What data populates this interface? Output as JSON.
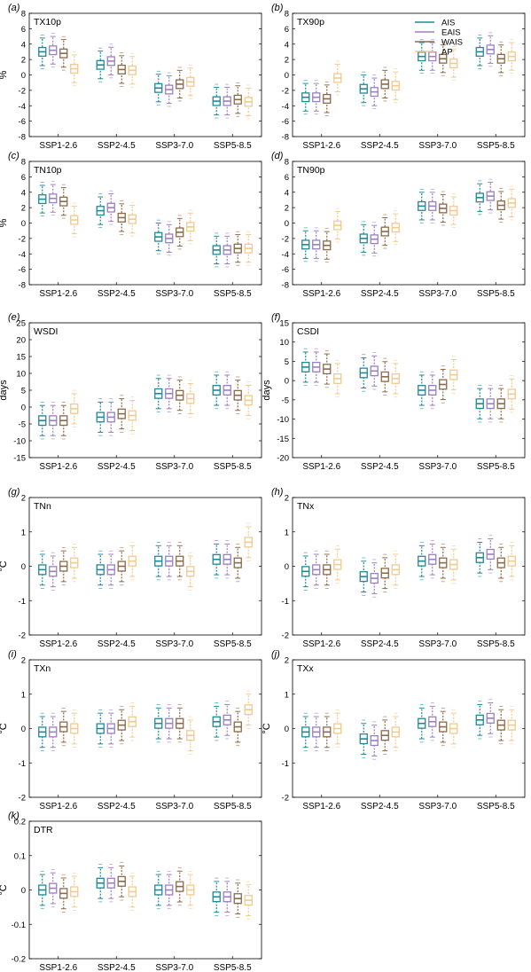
{
  "figure": {
    "categories": [
      "SSP1-2.6",
      "SSP2-4.5",
      "SSP3-7.0",
      "SSP5-8.5"
    ],
    "regions": [
      "AIS",
      "EAIS",
      "WAIS",
      "AP"
    ],
    "colors": {
      "AIS": "#1f8a96",
      "EAIS": "#9b7fc4",
      "WAIS": "#8c6a48",
      "AP": "#f2c98e"
    },
    "legend_position": "top-right of panel (b)"
  },
  "chart_data": [
    {
      "panel_label": "(a)",
      "title": "TX10p",
      "type": "box",
      "ylabel": "%",
      "ylim": [
        -8,
        8
      ],
      "yticks": [
        -8,
        -6,
        -4,
        -2,
        0,
        2,
        4,
        6,
        8
      ],
      "medians": {
        "AIS": [
          3.0,
          1.3,
          -1.7,
          -3.4
        ],
        "EAIS": [
          3.2,
          1.8,
          -1.9,
          -3.4
        ],
        "WAIS": [
          2.8,
          0.7,
          -1.2,
          -3.2
        ],
        "AP": [
          0.8,
          0.6,
          -0.9,
          -3.5
        ]
      }
    },
    {
      "panel_label": "(b)",
      "title": "TX90p",
      "type": "box",
      "ylabel": "",
      "ylim": [
        -8,
        8
      ],
      "yticks": [
        -8,
        -6,
        -4,
        -2,
        0,
        2,
        4,
        6,
        8
      ],
      "medians": {
        "AIS": [
          -2.9,
          -1.8,
          2.4,
          3.0
        ],
        "EAIS": [
          -2.9,
          -2.2,
          2.4,
          3.3
        ],
        "WAIS": [
          -3.1,
          -1.2,
          2.1,
          2.1
        ],
        "AP": [
          -0.4,
          -1.4,
          1.5,
          2.4
        ]
      }
    },
    {
      "panel_label": "(c)",
      "title": "TN10p",
      "type": "box",
      "ylabel": "%",
      "ylim": [
        -8,
        8
      ],
      "yticks": [
        -8,
        -6,
        -4,
        -2,
        0,
        2,
        4,
        6,
        8
      ],
      "medians": {
        "AIS": [
          3.1,
          1.6,
          -1.8,
          -3.5
        ],
        "EAIS": [
          3.2,
          2.0,
          -2.0,
          -3.5
        ],
        "WAIS": [
          2.8,
          0.7,
          -1.2,
          -3.3
        ],
        "AP": [
          0.4,
          0.5,
          -0.5,
          -3.3
        ]
      }
    },
    {
      "panel_label": "(d)",
      "title": "TN90p",
      "type": "box",
      "ylabel": "",
      "ylim": [
        -8,
        8
      ],
      "yticks": [
        -8,
        -6,
        -4,
        -2,
        0,
        2,
        4,
        6,
        8
      ],
      "medians": {
        "AIS": [
          -2.8,
          -2.0,
          2.2,
          3.3
        ],
        "EAIS": [
          -2.8,
          -2.1,
          2.2,
          3.5
        ],
        "WAIS": [
          -2.9,
          -1.1,
          1.9,
          2.3
        ],
        "AP": [
          -0.3,
          -0.6,
          1.6,
          2.6
        ]
      }
    },
    {
      "panel_label": "(e)",
      "title": "WSDI",
      "type": "box",
      "ylabel": "days",
      "ylim": [
        -15,
        25
      ],
      "yticks": [
        -15,
        -10,
        -5,
        0,
        5,
        10,
        15,
        20,
        25
      ],
      "medians": {
        "AIS": [
          -4.0,
          -3.0,
          4.0,
          5.0
        ],
        "EAIS": [
          -4.0,
          -3.0,
          4.0,
          5.0
        ],
        "WAIS": [
          -4.0,
          -2.0,
          3.5,
          3.5
        ],
        "AP": [
          -0.5,
          -2.5,
          2.5,
          2.0
        ]
      }
    },
    {
      "panel_label": "(f)",
      "title": "CSDI",
      "type": "box",
      "ylabel": "days",
      "ylim": [
        -20,
        15
      ],
      "yticks": [
        -20,
        -15,
        -10,
        -5,
        0,
        5,
        10,
        15
      ],
      "medians": {
        "AIS": [
          3.5,
          2.0,
          -2.5,
          -6.0
        ],
        "EAIS": [
          3.5,
          2.5,
          -2.5,
          -6.0
        ],
        "WAIS": [
          3.0,
          1.0,
          -1.0,
          -6.0
        ],
        "AP": [
          0.5,
          0.5,
          1.5,
          -3.5
        ]
      }
    },
    {
      "panel_label": "(g)",
      "title": "TNn",
      "type": "box",
      "ylabel": "°C",
      "ylim": [
        -2,
        2
      ],
      "yticks": [
        -2,
        -1,
        0,
        1,
        2
      ],
      "medians": {
        "AIS": [
          -0.1,
          -0.1,
          0.15,
          0.2
        ],
        "EAIS": [
          -0.15,
          -0.1,
          0.15,
          0.2
        ],
        "WAIS": [
          0.0,
          0.0,
          0.15,
          0.1
        ],
        "AP": [
          0.1,
          0.15,
          -0.15,
          0.7
        ]
      }
    },
    {
      "panel_label": "(h)",
      "title": "TNx",
      "type": "box",
      "ylabel": "",
      "ylim": [
        -2,
        2
      ],
      "yticks": [
        -2,
        -1,
        0,
        1,
        2
      ],
      "medians": {
        "AIS": [
          -0.15,
          -0.3,
          0.15,
          0.25
        ],
        "EAIS": [
          -0.1,
          -0.35,
          0.2,
          0.35
        ],
        "WAIS": [
          -0.1,
          -0.2,
          0.1,
          0.1
        ],
        "AP": [
          0.05,
          -0.1,
          0.05,
          0.15
        ]
      }
    },
    {
      "panel_label": "(i)",
      "title": "TXn",
      "type": "box",
      "ylabel": "°C",
      "ylim": [
        -2,
        2
      ],
      "yticks": [
        -2,
        -1,
        0,
        1,
        2
      ],
      "medians": {
        "AIS": [
          -0.1,
          0.0,
          0.15,
          0.2
        ],
        "EAIS": [
          -0.1,
          0.0,
          0.15,
          0.25
        ],
        "WAIS": [
          0.05,
          0.1,
          0.15,
          0.05
        ],
        "AP": [
          0.0,
          0.2,
          -0.2,
          0.55
        ]
      }
    },
    {
      "panel_label": "(j)",
      "title": "TXx",
      "type": "box",
      "ylabel": "°C",
      "ylim": [
        -2,
        2
      ],
      "yticks": [
        -2,
        -1,
        0,
        1,
        2
      ],
      "medians": {
        "AIS": [
          -0.1,
          -0.3,
          0.15,
          0.25
        ],
        "EAIS": [
          -0.1,
          -0.35,
          0.2,
          0.3
        ],
        "WAIS": [
          -0.1,
          -0.2,
          0.05,
          0.1
        ],
        "AP": [
          0.0,
          -0.1,
          0.0,
          0.1
        ]
      }
    },
    {
      "panel_label": "(k)",
      "title": "DTR",
      "type": "box",
      "ylabel": "°C",
      "ylim": [
        -0.2,
        0.2
      ],
      "yticks": [
        -0.2,
        -0.1,
        0,
        0.1,
        0.2
      ],
      "medians": {
        "AIS": [
          0.0,
          0.02,
          0.0,
          -0.02
        ],
        "EAIS": [
          0.005,
          0.02,
          0.0,
          -0.02
        ],
        "WAIS": [
          -0.01,
          0.025,
          0.01,
          -0.025
        ],
        "AP": [
          -0.005,
          -0.005,
          0.0,
          -0.03
        ]
      }
    }
  ]
}
